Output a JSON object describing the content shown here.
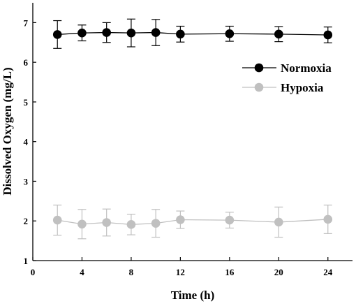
{
  "chart_data": {
    "type": "line",
    "xlabel": "Time (h)",
    "ylabel": "Dissolved Oxygen (mg/L)",
    "xlim": [
      0,
      26
    ],
    "ylim": [
      1,
      7.5
    ],
    "x_ticks": [
      "0",
      "4",
      "8",
      "12",
      "16",
      "20",
      "24"
    ],
    "y_ticks": [
      "1",
      "2",
      "3",
      "4",
      "5",
      "6",
      "7"
    ],
    "legend_position": "top-right",
    "series": [
      {
        "name": "Normoxia",
        "color": "#000000",
        "x": [
          2,
          4,
          6,
          8,
          10,
          12,
          16,
          20,
          24
        ],
        "y": [
          6.7,
          6.74,
          6.75,
          6.74,
          6.75,
          6.71,
          6.72,
          6.71,
          6.69
        ],
        "error": [
          0.35,
          0.2,
          0.25,
          0.35,
          0.33,
          0.2,
          0.19,
          0.19,
          0.2
        ]
      },
      {
        "name": "Hypoxia",
        "color": "#c0c0c0",
        "x": [
          2,
          4,
          6,
          8,
          10,
          12,
          16,
          20,
          24
        ],
        "y": [
          2.02,
          1.92,
          1.96,
          1.91,
          1.94,
          2.03,
          2.02,
          1.97,
          2.04
        ],
        "error": [
          0.38,
          0.37,
          0.34,
          0.26,
          0.35,
          0.22,
          0.2,
          0.38,
          0.36
        ]
      }
    ]
  }
}
